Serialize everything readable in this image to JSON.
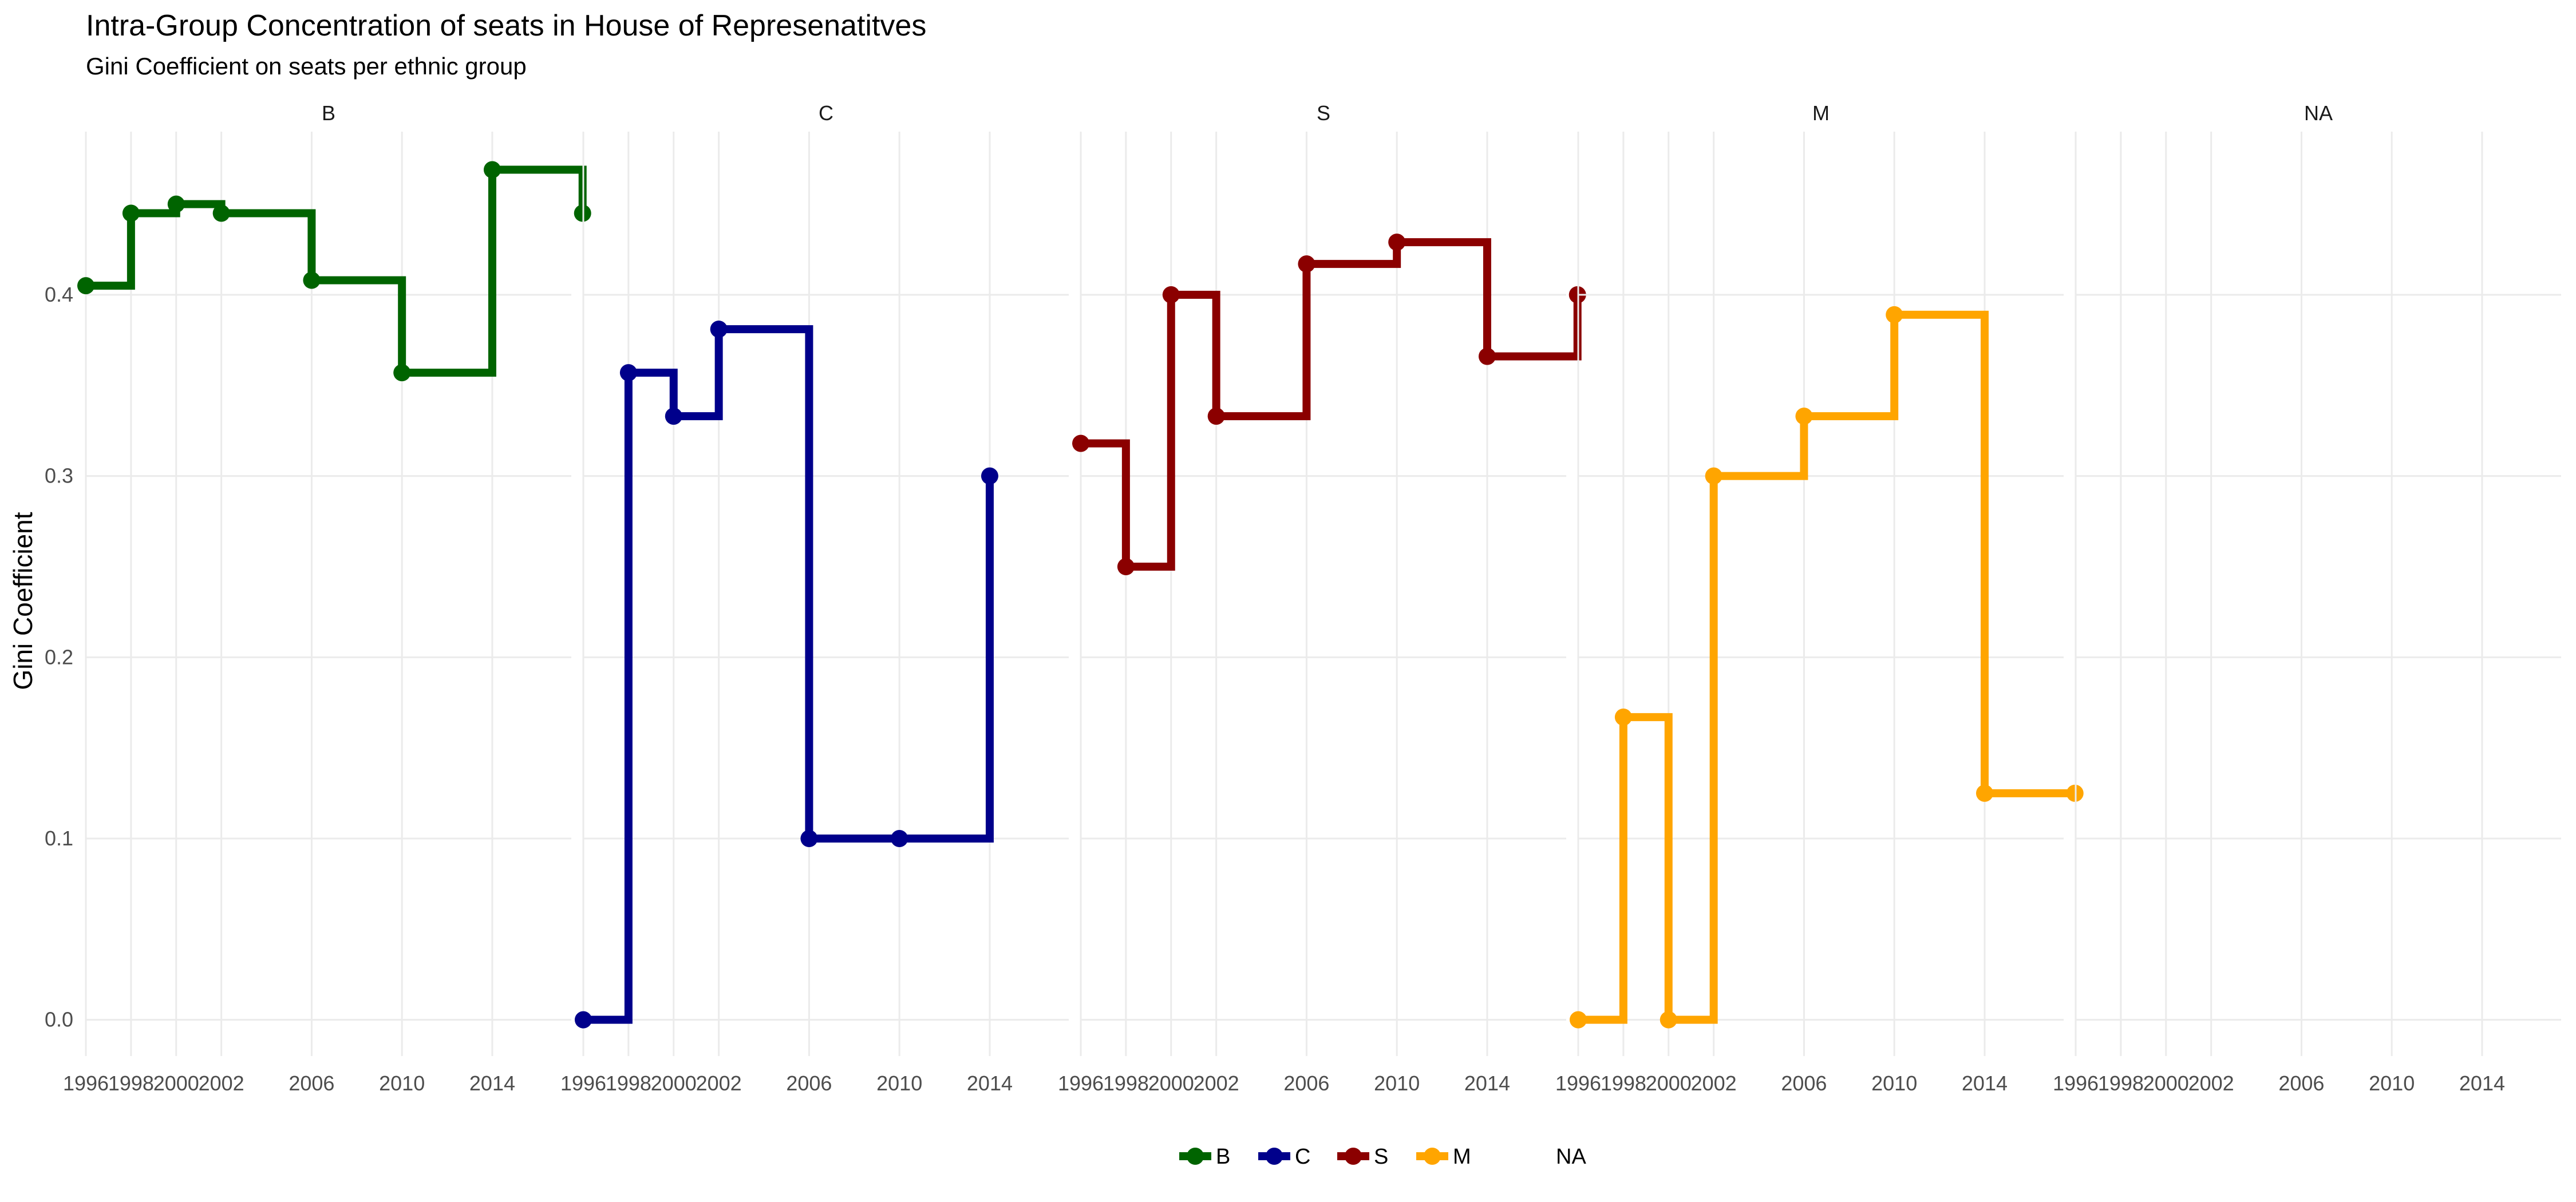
{
  "chart_data": {
    "type": "line",
    "step": true,
    "title": "Intra-Group Concentration of seats in House of Represenatitves",
    "subtitle": "Gini Coefficient on seats per ethnic group",
    "xlabel": "",
    "ylabel": "Gini Coefficient",
    "x_ticks": [
      1996,
      1998,
      2000,
      2002,
      2006,
      2010,
      2014
    ],
    "xlim": [
      1996,
      2017.5
    ],
    "y_ticks": [
      0.0,
      0.1,
      0.2,
      0.3,
      0.4
    ],
    "y_tick_labels": [
      "0.0",
      "0.1",
      "0.2",
      "0.3",
      "0.4"
    ],
    "ylim": [
      -0.02,
      0.49
    ],
    "grid": true,
    "legend_placement": "bottom",
    "legend": [
      "B",
      "C",
      "S",
      "M",
      "NA"
    ],
    "panels": [
      {
        "label": "B",
        "color": "#006400",
        "x": [
          1996,
          1998,
          2000,
          2002,
          2006,
          2010,
          2014,
          2018
        ],
        "y": [
          0.405,
          0.445,
          0.45,
          0.445,
          0.408,
          0.357,
          0.469,
          0.445
        ]
      },
      {
        "label": "C",
        "color": "#00008B",
        "x": [
          1996,
          1998,
          2000,
          2002,
          2006,
          2010,
          2014
        ],
        "y": [
          0.0,
          0.357,
          0.333,
          0.381,
          0.1,
          0.1,
          0.3
        ]
      },
      {
        "label": "S",
        "color": "#8B0000",
        "x": [
          1996,
          1998,
          2000,
          2002,
          2006,
          2010,
          2014,
          2018
        ],
        "y": [
          0.318,
          0.25,
          0.4,
          0.333,
          0.417,
          0.429,
          0.366,
          0.4
        ]
      },
      {
        "label": "M",
        "color": "#FFA500",
        "x": [
          1996,
          1998,
          2000,
          2002,
          2006,
          2010,
          2014,
          2018
        ],
        "y": [
          0.0,
          0.167,
          0.0,
          0.3,
          0.333,
          0.389,
          0.125,
          0.125
        ]
      },
      {
        "label": "NA",
        "color": "#999999",
        "x": [],
        "y": []
      }
    ]
  }
}
